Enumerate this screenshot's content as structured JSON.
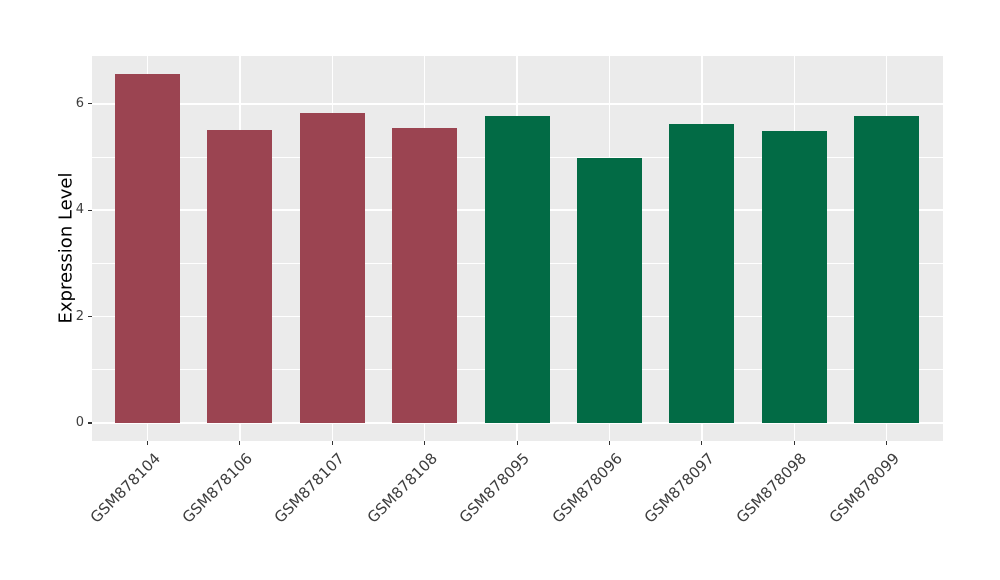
{
  "chart_data": {
    "type": "bar",
    "title": "",
    "xlabel": "",
    "ylabel": "Expression Level",
    "categories": [
      "GSM878104",
      "GSM878106",
      "GSM878107",
      "GSM878108",
      "GSM878095",
      "GSM878096",
      "GSM878097",
      "GSM878098",
      "GSM878099"
    ],
    "values": [
      6.56,
      5.5,
      5.83,
      5.54,
      5.77,
      4.99,
      5.62,
      5.49,
      5.78
    ],
    "groups": [
      "group-1",
      "group-1",
      "group-1",
      "group-1",
      "group-2",
      "group-2",
      "group-2",
      "group-2",
      "group-2"
    ],
    "group_colors": {
      "group-1": "#9B4451",
      "group-2": "#026B45"
    },
    "yticks": [
      0,
      2,
      4,
      6
    ],
    "minor_yticks": [
      1,
      3,
      5
    ],
    "ylim": [
      0,
      6.9
    ],
    "x_tick_angle": -45,
    "grid": "on",
    "legend_position": "none",
    "panel_bg": "#EBEBEB",
    "grid_color": "#FFFFFF",
    "tick_color": "#333333",
    "tick_label_color": "#3d3d3d",
    "axis_label_color": "#000000"
  }
}
